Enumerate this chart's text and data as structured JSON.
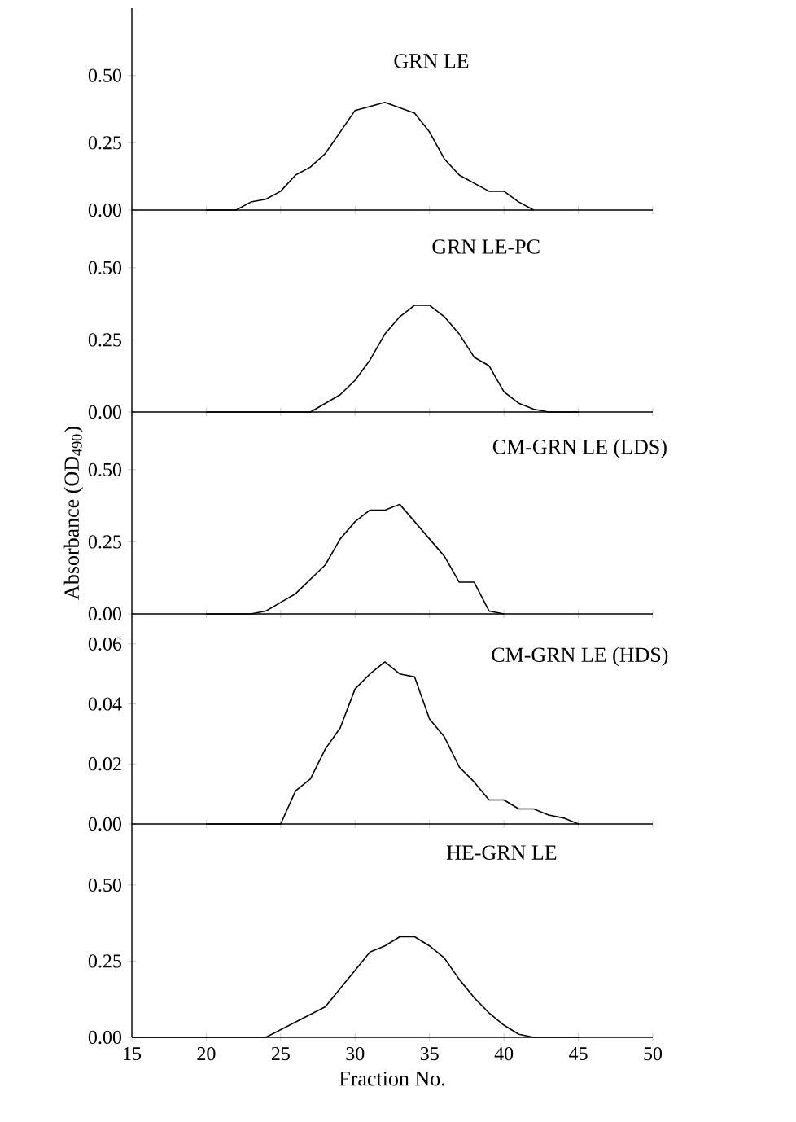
{
  "chart_data": [
    {
      "type": "line",
      "title": "GRN LE",
      "color": "#000000",
      "xlim": [
        15,
        50
      ],
      "xticks": [
        15,
        20,
        25,
        30,
        35,
        40,
        45,
        50
      ],
      "ylim": [
        0,
        0.75
      ],
      "yticks": [
        {
          "value": 0,
          "label": "0.00"
        },
        {
          "value": 0.25,
          "label": "0.25"
        },
        {
          "value": 0.5,
          "label": "0.50"
        }
      ],
      "tick_labels": "y",
      "x": [
        20,
        22,
        23,
        24,
        25,
        26,
        27,
        28,
        29,
        30,
        32,
        34,
        35,
        36,
        37,
        38,
        39,
        40,
        41,
        42
      ],
      "values": [
        0,
        0,
        0.03,
        0.04,
        0.07,
        0.13,
        0.16,
        0.21,
        0.29,
        0.37,
        0.4,
        0.36,
        0.29,
        0.19,
        0.13,
        0.1,
        0.07,
        0.07,
        0.03,
        0
      ]
    },
    {
      "type": "line",
      "title": "GRN LE-PC",
      "color": "#000000",
      "xlim": [
        15,
        50
      ],
      "xticks": [
        15,
        20,
        25,
        30,
        35,
        40,
        45,
        50
      ],
      "ylim": [
        0,
        0.7
      ],
      "yticks": [
        {
          "value": 0,
          "label": "0.00"
        },
        {
          "value": 0.25,
          "label": "0.25"
        },
        {
          "value": 0.5,
          "label": "0.50"
        }
      ],
      "tick_labels": "y",
      "x": [
        20,
        27,
        29,
        30,
        31,
        32,
        33,
        34,
        35,
        36,
        37,
        38,
        39,
        40,
        41,
        42,
        43,
        45
      ],
      "values": [
        0,
        0,
        0.06,
        0.11,
        0.18,
        0.27,
        0.33,
        0.37,
        0.37,
        0.33,
        0.27,
        0.19,
        0.16,
        0.07,
        0.03,
        0.01,
        0,
        0
      ]
    },
    {
      "type": "line",
      "title": "CM-GRN LE (LDS)",
      "ylabel": "Absorbance (OD$_{490}$)",
      "color": "#000000",
      "xlim": [
        15,
        50
      ],
      "xticks": [
        15,
        20,
        25,
        30,
        35,
        40,
        45,
        50
      ],
      "ylim": [
        0,
        0.7
      ],
      "yticks": [
        {
          "value": 0,
          "label": "0.00"
        },
        {
          "value": 0.25,
          "label": "0.25"
        },
        {
          "value": 0.5,
          "label": "0.50"
        }
      ],
      "tick_labels": "y",
      "x": [
        20,
        23,
        24,
        25,
        26,
        27,
        28,
        29,
        30,
        31,
        32,
        33,
        34,
        35,
        36,
        37,
        38,
        39,
        40
      ],
      "values": [
        0,
        0,
        0.01,
        0.04,
        0.07,
        0.12,
        0.17,
        0.26,
        0.32,
        0.36,
        0.36,
        0.38,
        0.32,
        0.26,
        0.2,
        0.11,
        0.11,
        0.01,
        0
      ]
    },
    {
      "type": "line",
      "title": "CM-GRN LE (HDS)",
      "color": "#000000",
      "xlim": [
        15,
        50
      ],
      "xticks": [
        15,
        20,
        25,
        30,
        35,
        40,
        45,
        50
      ],
      "ylim": [
        0,
        0.07
      ],
      "yticks": [
        {
          "value": 0,
          "label": "0.00"
        },
        {
          "value": 0.02,
          "label": "0.02"
        },
        {
          "value": 0.04,
          "label": "0.04"
        },
        {
          "value": 0.06,
          "label": "0.06"
        }
      ],
      "tick_labels": "y",
      "x": [
        20,
        25,
        26,
        27,
        28,
        29,
        30,
        31,
        32,
        33,
        34,
        35,
        36,
        37,
        38,
        39,
        40,
        41,
        42,
        43,
        44,
        45
      ],
      "values": [
        0,
        0,
        0.011,
        0.015,
        0.025,
        0.032,
        0.045,
        0.05,
        0.054,
        0.05,
        0.049,
        0.035,
        0.029,
        0.019,
        0.014,
        0.008,
        0.008,
        0.005,
        0.005,
        0.003,
        0.002,
        0
      ]
    },
    {
      "type": "line",
      "title": "HE-GRN LE",
      "xlabel": "Fraction No.",
      "color": "#000000",
      "xlim": [
        15,
        50
      ],
      "xticks": [
        15,
        20,
        25,
        30,
        35,
        40,
        45,
        50
      ],
      "ylim": [
        0,
        0.7
      ],
      "yticks": [
        {
          "value": 0,
          "label": "0.00"
        },
        {
          "value": 0.25,
          "label": "0.25"
        },
        {
          "value": 0.5,
          "label": "0.50"
        }
      ],
      "x": [
        15,
        24,
        26,
        28,
        29,
        30,
        31,
        32,
        33,
        34,
        35,
        36,
        37,
        38,
        39,
        40,
        41,
        42,
        45
      ],
      "values": [
        0,
        0,
        0.05,
        0.1,
        0.16,
        0.22,
        0.28,
        0.3,
        0.33,
        0.33,
        0.3,
        0.26,
        0.19,
        0.13,
        0.08,
        0.04,
        0.01,
        0,
        0
      ]
    }
  ]
}
